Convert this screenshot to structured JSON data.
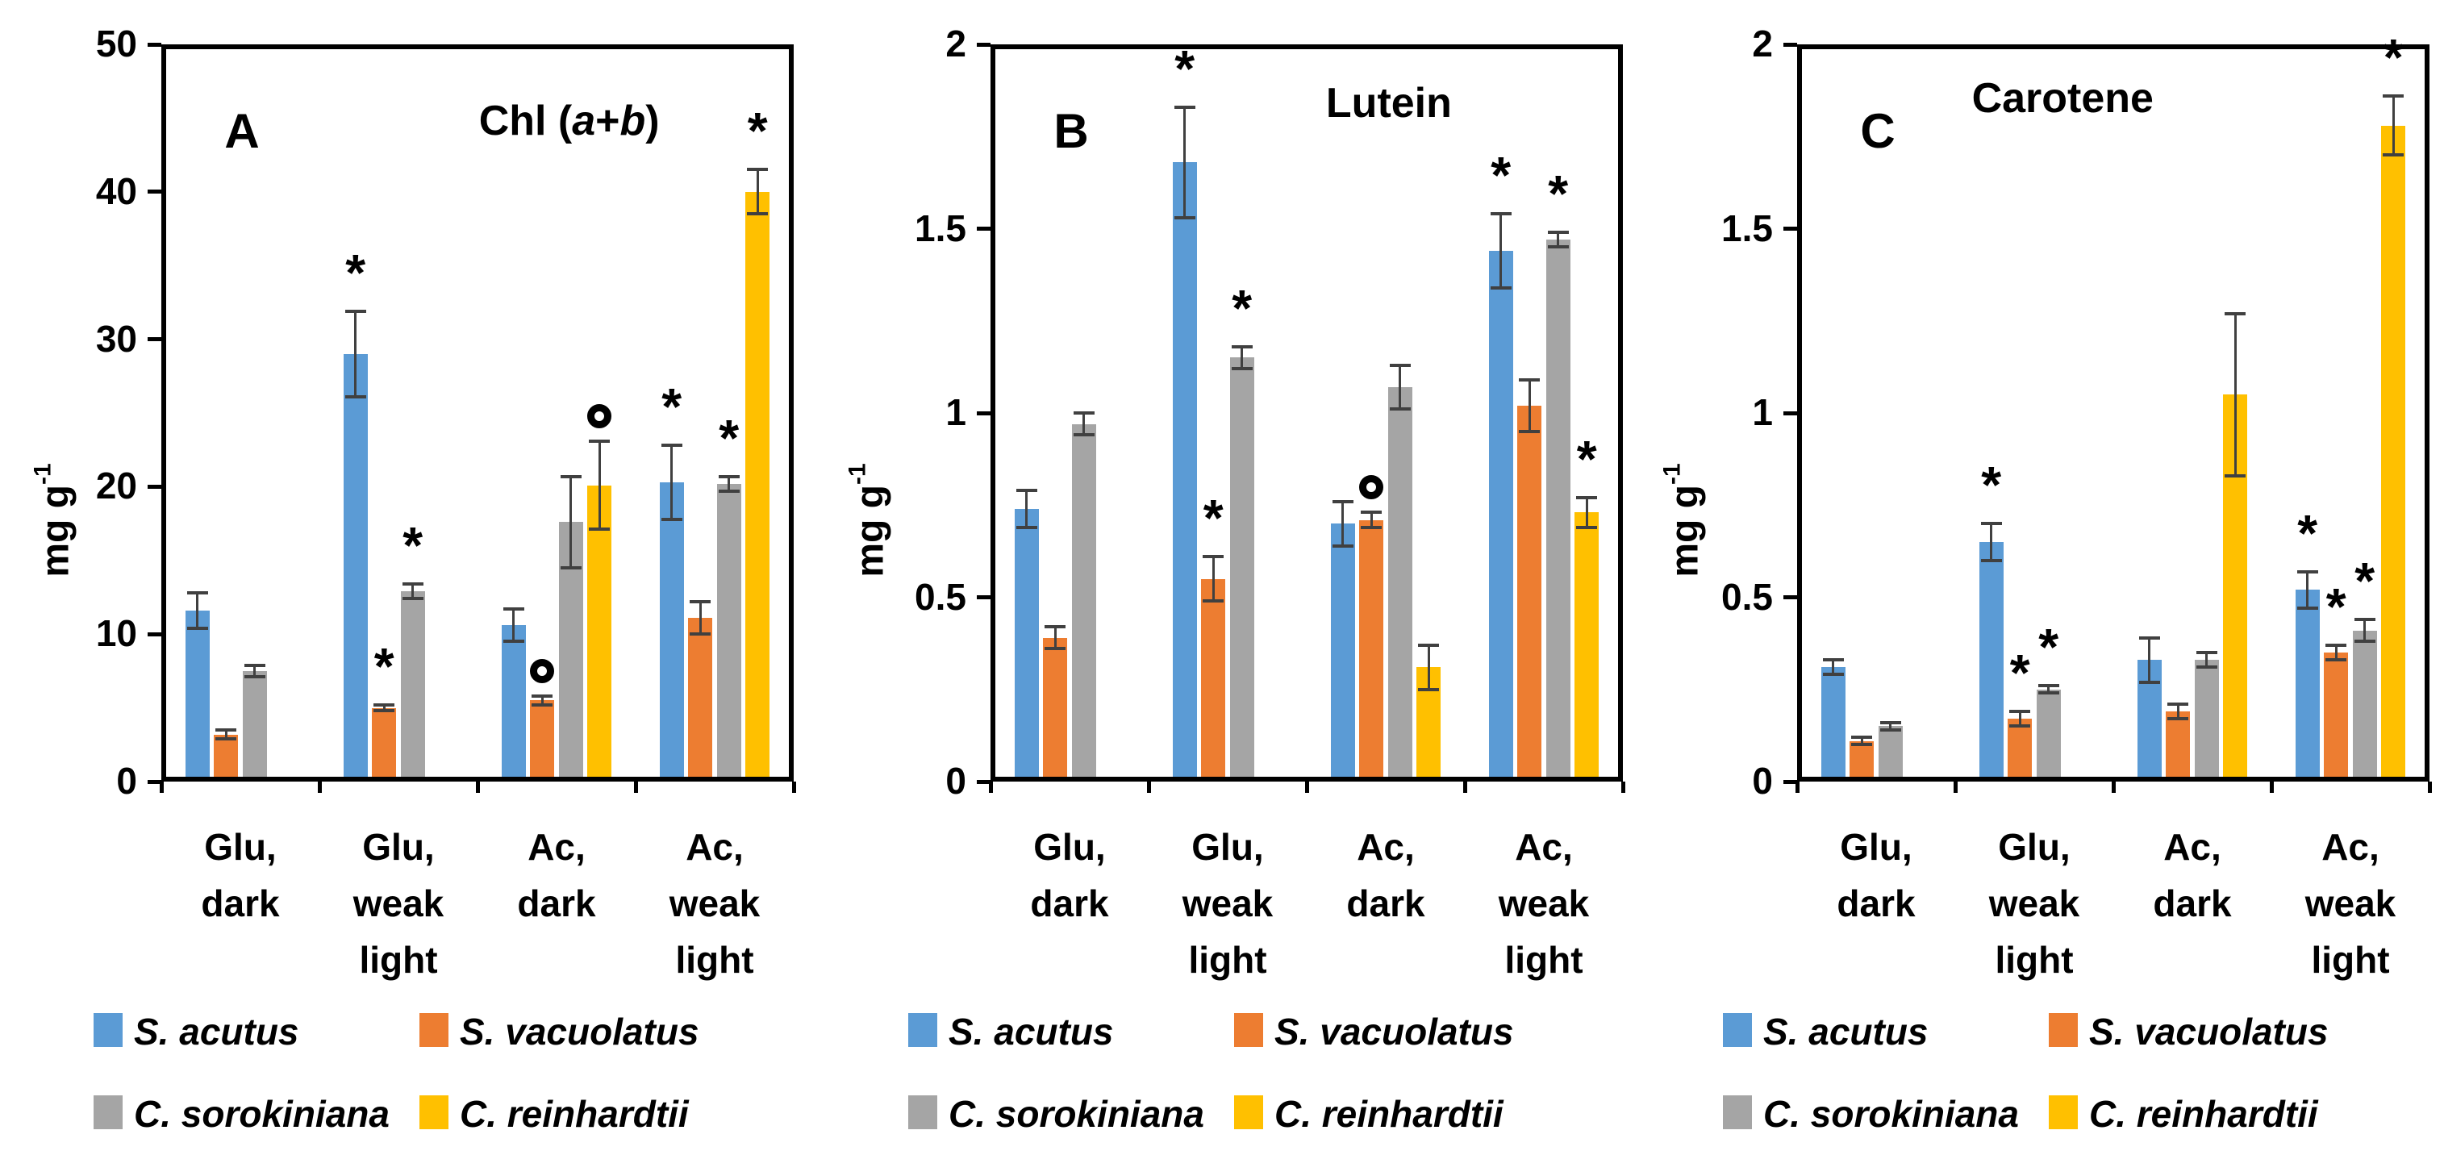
{
  "figure": {
    "description": "Three-panel bar figure of pigment content (mg per g) in four algae species under four cultivation conditions",
    "background": "#ffffff",
    "text_color": "#000000",
    "error_bar_color": "#404040",
    "significance_markers": {
      "asterisk": "*",
      "circle": "o"
    }
  },
  "chart_data": [
    {
      "type": "bar",
      "panel_label": "A",
      "title": "Chl (a+b)",
      "title_parts": [
        {
          "t": "Chl ("
        },
        {
          "t": "a",
          "i": true
        },
        {
          "t": "+"
        },
        {
          "t": "b",
          "i": true
        },
        {
          "t": ")"
        }
      ],
      "ylabel": "mg g-1",
      "ylabel_parts": [
        {
          "t": "mg g"
        },
        {
          "t": "-1",
          "sup": true
        }
      ],
      "ylim": [
        0,
        50
      ],
      "yticks": [
        0,
        10,
        20,
        30,
        40,
        50
      ],
      "grid": false,
      "legend_position": "bottom",
      "categories": [
        [
          "Glu,",
          "dark"
        ],
        [
          "Glu,",
          "weak",
          "light"
        ],
        [
          "Ac,",
          "dark"
        ],
        [
          "Ac,",
          "weak",
          "light"
        ]
      ],
      "series": [
        {
          "name": "S. acutus",
          "color": "#5B9BD5",
          "values": [
            11.6,
            29.0,
            10.6,
            20.3
          ],
          "errors": [
            1.2,
            2.9,
            1.1,
            2.5
          ],
          "markers": [
            "",
            "*",
            "",
            "*"
          ]
        },
        {
          "name": "S. vacuolatus",
          "color": "#ED7D31",
          "values": [
            3.2,
            5.0,
            5.5,
            11.1
          ],
          "errors": [
            0.3,
            0.2,
            0.3,
            1.1
          ],
          "markers": [
            "",
            "*",
            "o",
            ""
          ]
        },
        {
          "name": "C. sorokiniana",
          "color": "#A5A5A5",
          "values": [
            7.5,
            12.9,
            17.6,
            20.2
          ],
          "errors": [
            0.4,
            0.5,
            3.1,
            0.5
          ],
          "markers": [
            "",
            "*",
            "",
            "*"
          ]
        },
        {
          "name": "C. reinhardtii",
          "color": "#FFC000",
          "values": [
            null,
            null,
            20.1,
            40.0
          ],
          "errors": [
            null,
            null,
            3.0,
            1.5
          ],
          "markers": [
            "",
            "",
            "o",
            "*"
          ]
        }
      ]
    },
    {
      "type": "bar",
      "panel_label": "B",
      "title": "Lutein",
      "title_parts": [
        {
          "t": "Lutein"
        }
      ],
      "ylabel": "mg g-1",
      "ylabel_parts": [
        {
          "t": "mg g"
        },
        {
          "t": "-1",
          "sup": true
        }
      ],
      "ylim": [
        0,
        2
      ],
      "yticks": [
        0,
        0.5,
        1,
        1.5,
        2
      ],
      "grid": false,
      "legend_position": "bottom",
      "categories": [
        [
          "Glu,",
          "dark"
        ],
        [
          "Glu,",
          "weak",
          "light"
        ],
        [
          "Ac,",
          "dark"
        ],
        [
          "Ac,",
          "weak",
          "light"
        ]
      ],
      "series": [
        {
          "name": "S. acutus",
          "color": "#5B9BD5",
          "values": [
            0.74,
            1.68,
            0.7,
            1.44
          ],
          "errors": [
            0.05,
            0.15,
            0.06,
            0.1
          ],
          "markers": [
            "",
            "*",
            "",
            "*"
          ]
        },
        {
          "name": "S. vacuolatus",
          "color": "#ED7D31",
          "values": [
            0.39,
            0.55,
            0.71,
            1.02
          ],
          "errors": [
            0.03,
            0.06,
            0.02,
            0.07
          ],
          "markers": [
            "",
            "*",
            "o",
            ""
          ]
        },
        {
          "name": "C. sorokiniana",
          "color": "#A5A5A5",
          "values": [
            0.97,
            1.15,
            1.07,
            1.47
          ],
          "errors": [
            0.03,
            0.03,
            0.06,
            0.02
          ],
          "markers": [
            "",
            "*",
            "",
            "*"
          ]
        },
        {
          "name": "C. reinhardtii",
          "color": "#FFC000",
          "values": [
            null,
            null,
            0.31,
            0.73
          ],
          "errors": [
            null,
            null,
            0.06,
            0.04
          ],
          "markers": [
            "",
            "",
            "",
            "*"
          ]
        }
      ]
    },
    {
      "type": "bar",
      "panel_label": "C",
      "title": "Carotene",
      "title_parts": [
        {
          "t": "Carotene"
        }
      ],
      "ylabel": "mg g-1",
      "ylabel_parts": [
        {
          "t": "mg g"
        },
        {
          "t": "-1",
          "sup": true
        }
      ],
      "ylim": [
        0,
        2
      ],
      "yticks": [
        0,
        0.5,
        1,
        1.5,
        2
      ],
      "grid": false,
      "legend_position": "bottom",
      "categories": [
        [
          "Glu,",
          "dark"
        ],
        [
          "Glu,",
          "weak",
          "light"
        ],
        [
          "Ac,",
          "dark"
        ],
        [
          "Ac,",
          "weak",
          "light"
        ]
      ],
      "series": [
        {
          "name": "S. acutus",
          "color": "#5B9BD5",
          "values": [
            0.31,
            0.65,
            0.33,
            0.52
          ],
          "errors": [
            0.02,
            0.05,
            0.06,
            0.05
          ],
          "markers": [
            "",
            "*",
            "",
            "*"
          ]
        },
        {
          "name": "S. vacuolatus",
          "color": "#ED7D31",
          "values": [
            0.11,
            0.17,
            0.19,
            0.35
          ],
          "errors": [
            0.01,
            0.02,
            0.02,
            0.02
          ],
          "markers": [
            "",
            "*",
            "",
            "*"
          ]
        },
        {
          "name": "C. sorokiniana",
          "color": "#A5A5A5",
          "values": [
            0.15,
            0.25,
            0.33,
            0.41
          ],
          "errors": [
            0.01,
            0.01,
            0.02,
            0.03
          ],
          "markers": [
            "",
            "*",
            "",
            "*"
          ]
        },
        {
          "name": "C. reinhardtii",
          "color": "#FFC000",
          "values": [
            null,
            null,
            1.05,
            1.78
          ],
          "errors": [
            null,
            null,
            0.22,
            0.08
          ],
          "markers": [
            "",
            "",
            "",
            "*"
          ]
        }
      ]
    }
  ]
}
